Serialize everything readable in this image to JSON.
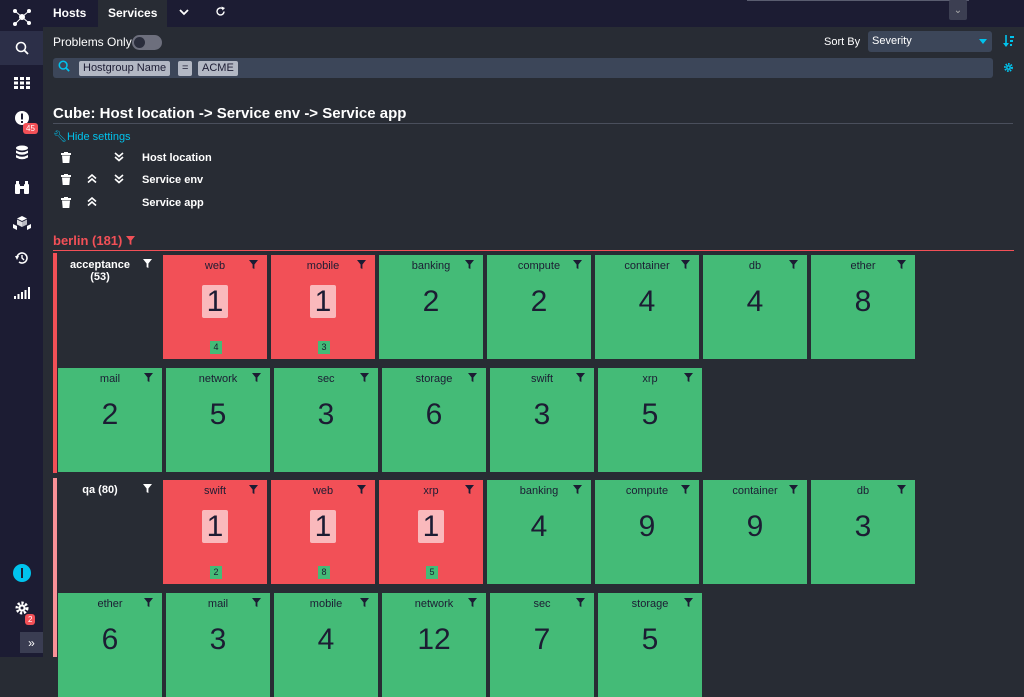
{
  "sidebar": {
    "badges": {
      "problems": "45",
      "settings": "2"
    }
  },
  "tabs": [
    {
      "label": "Hosts"
    },
    {
      "label": "Services"
    }
  ],
  "controls": {
    "problems_only_label": "Problems Only",
    "sort_by_label": "Sort By",
    "sort_by_value": "Severity"
  },
  "search": {
    "chip_field": "Hostgroup Name",
    "chip_op": "=",
    "chip_value": "ACME"
  },
  "cube": {
    "title": "Cube: Host location -> Service env -> Service app",
    "hide_settings": "Hide settings",
    "dimensions": [
      "Host location",
      "Service env",
      "Service app"
    ]
  },
  "group": {
    "title": "berlin (181)",
    "rows": [
      {
        "label": "acceptance (53)",
        "tiles": [
          {
            "name": "web",
            "count": "1",
            "state": "crit",
            "sub": "4"
          },
          {
            "name": "mobile",
            "count": "1",
            "state": "crit",
            "sub": "3"
          },
          {
            "name": "banking",
            "count": "2",
            "state": "ok"
          },
          {
            "name": "compute",
            "count": "2",
            "state": "ok"
          },
          {
            "name": "container",
            "count": "4",
            "state": "ok"
          },
          {
            "name": "db",
            "count": "4",
            "state": "ok"
          },
          {
            "name": "ether",
            "count": "8",
            "state": "ok"
          },
          {
            "name": "mail",
            "count": "2",
            "state": "ok"
          },
          {
            "name": "network",
            "count": "5",
            "state": "ok"
          },
          {
            "name": "sec",
            "count": "3",
            "state": "ok"
          },
          {
            "name": "storage",
            "count": "6",
            "state": "ok"
          },
          {
            "name": "swift",
            "count": "3",
            "state": "ok"
          },
          {
            "name": "xrp",
            "count": "5",
            "state": "ok"
          }
        ]
      },
      {
        "label": "qa (80)",
        "tiles": [
          {
            "name": "swift",
            "count": "1",
            "state": "crit",
            "sub": "2"
          },
          {
            "name": "web",
            "count": "1",
            "state": "crit",
            "sub": "8"
          },
          {
            "name": "xrp",
            "count": "1",
            "state": "crit",
            "sub": "5"
          },
          {
            "name": "banking",
            "count": "4",
            "state": "ok"
          },
          {
            "name": "compute",
            "count": "9",
            "state": "ok"
          },
          {
            "name": "container",
            "count": "9",
            "state": "ok"
          },
          {
            "name": "db",
            "count": "3",
            "state": "ok"
          },
          {
            "name": "ether",
            "count": "6",
            "state": "ok"
          },
          {
            "name": "mail",
            "count": "3",
            "state": "ok"
          },
          {
            "name": "mobile",
            "count": "4",
            "state": "ok"
          },
          {
            "name": "network",
            "count": "12",
            "state": "ok"
          },
          {
            "name": "sec",
            "count": "7",
            "state": "ok"
          },
          {
            "name": "storage",
            "count": "5",
            "state": "ok"
          }
        ]
      }
    ]
  },
  "colors": {
    "ok": "#44bb77",
    "critical": "#f25057",
    "accent": "#00c3ed",
    "sidebar": "#1c1c33",
    "background": "#282c34"
  }
}
